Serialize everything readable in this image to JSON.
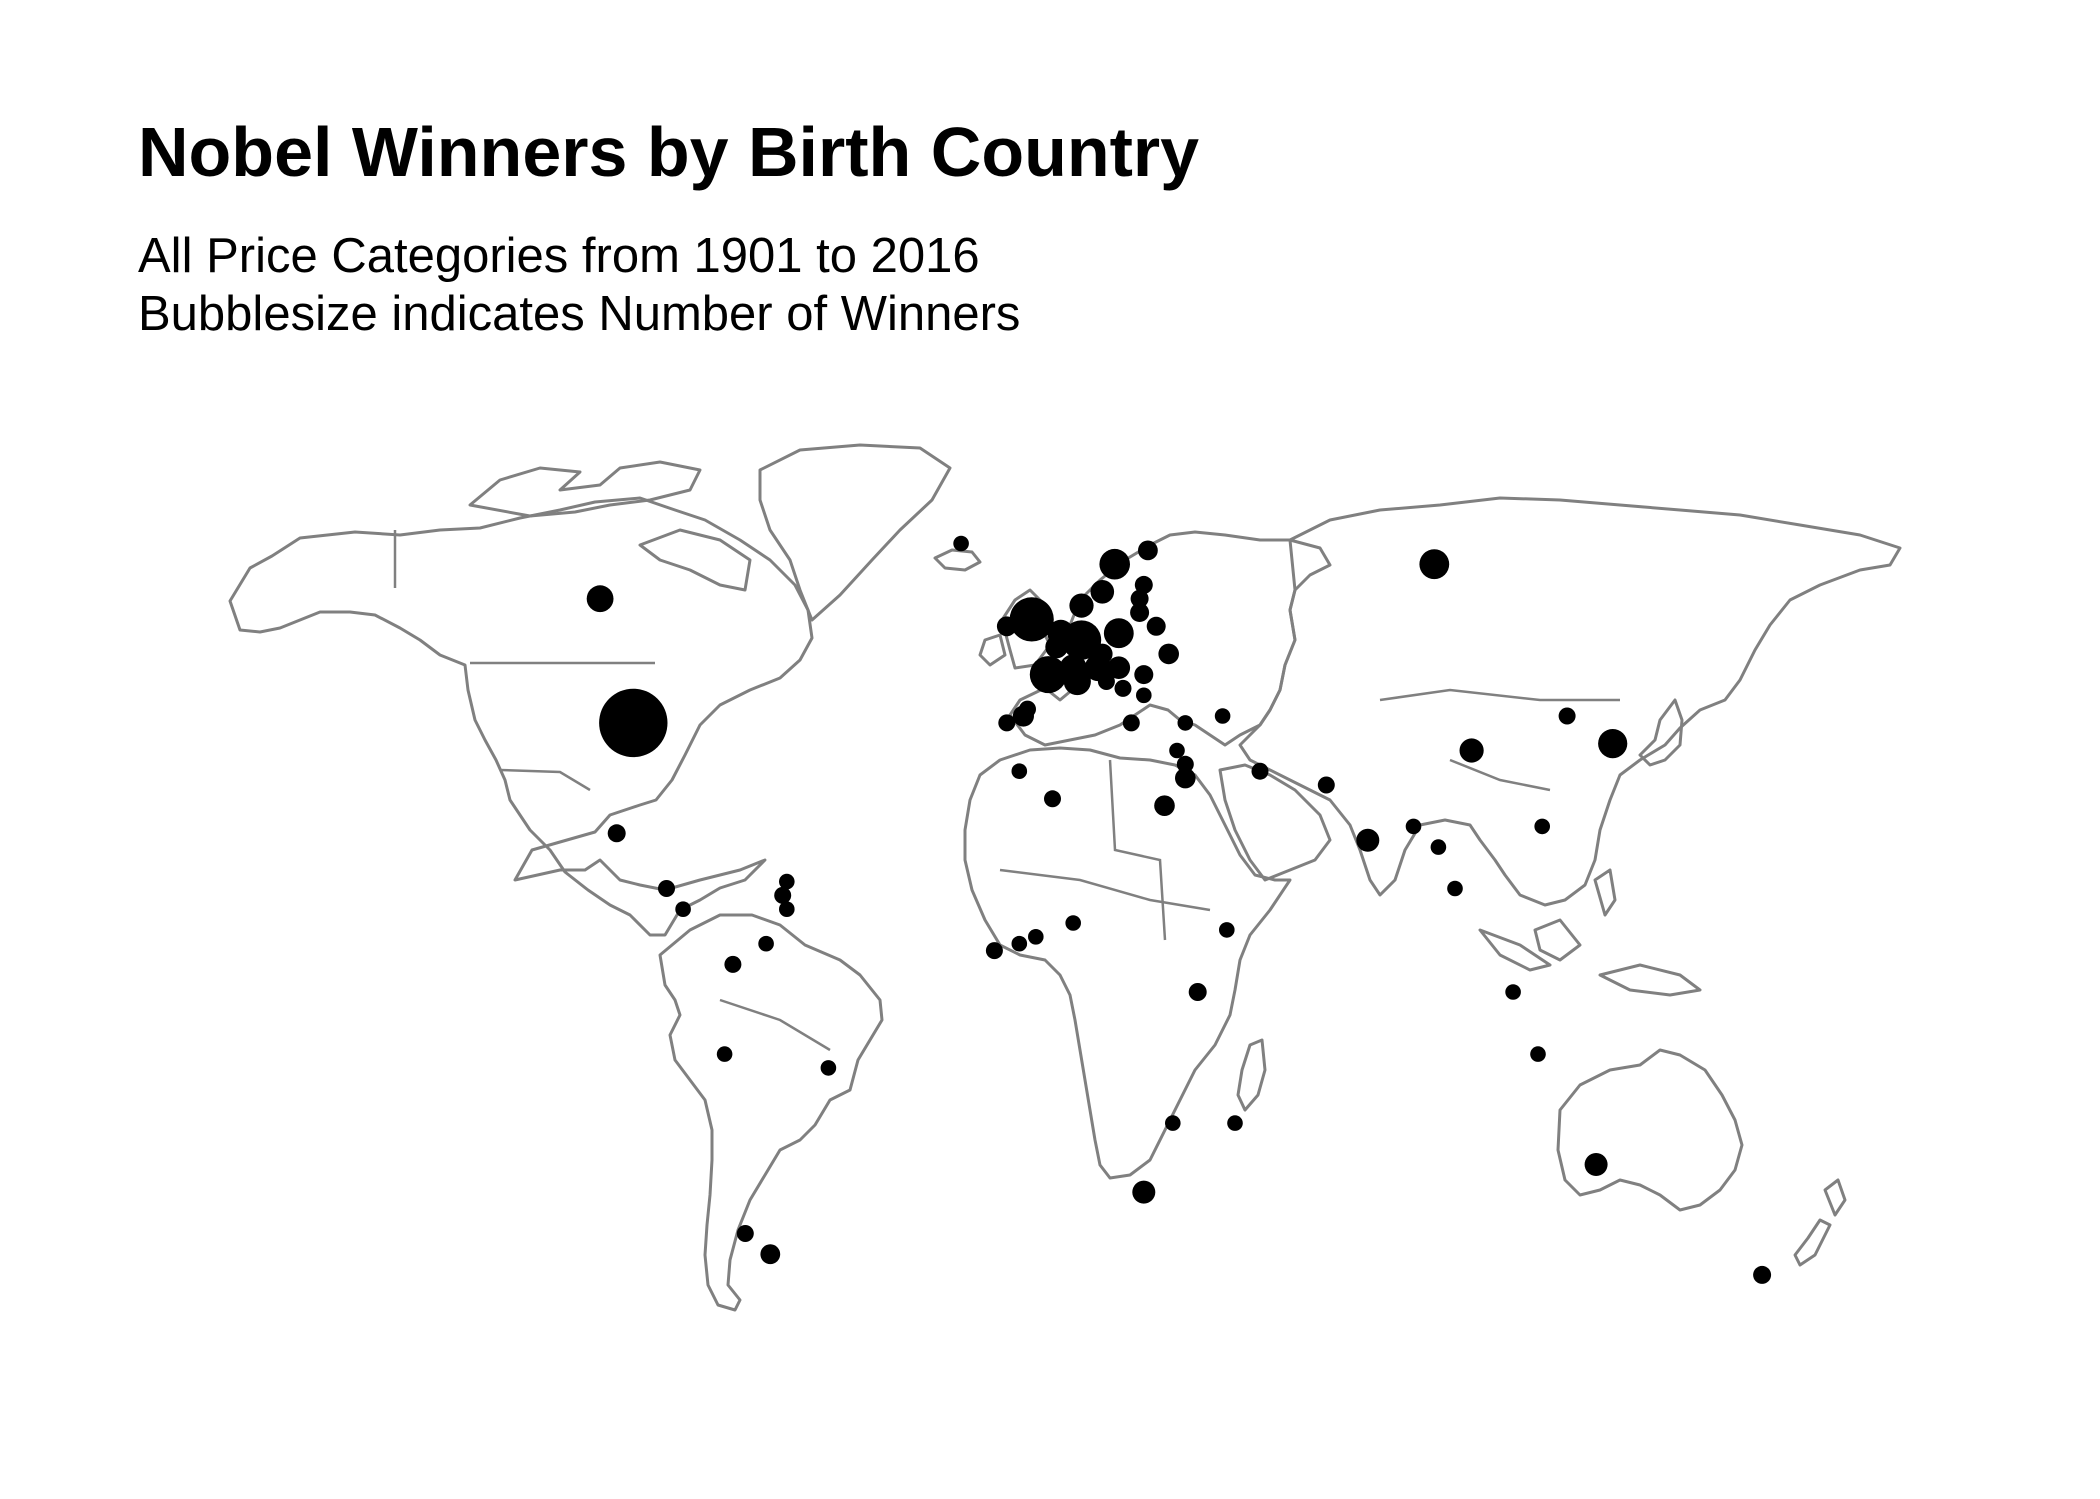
{
  "title": "Nobel Winners by Birth Country",
  "subtitle_1": "All Price Categories from 1901 to 2016",
  "subtitle_2": "Bubblesize indicates Number of Winners",
  "style": {
    "outline_color": "#808080",
    "bubble_color": "#000000",
    "background": "#ffffff"
  },
  "chart_data": {
    "type": "bubble-map",
    "size_meaning": "number of winners",
    "points": [
      {
        "lon": -98,
        "lat": 39,
        "winners": 259
      },
      {
        "lon": -2,
        "lat": 54,
        "winners": 85
      },
      {
        "lon": 10,
        "lat": 51,
        "winners": 61
      },
      {
        "lon": 2,
        "lat": 46,
        "winners": 51
      },
      {
        "lon": 18,
        "lat": 62,
        "winners": 28
      },
      {
        "lon": 19,
        "lat": 52,
        "winners": 26
      },
      {
        "lon": 15,
        "lat": 58,
        "winners": 11
      },
      {
        "lon": 138,
        "lat": 36,
        "winners": 24
      },
      {
        "lon": 5,
        "lat": 52,
        "winners": 18
      },
      {
        "lon": 14,
        "lat": 47,
        "winners": 18
      },
      {
        "lon": 8,
        "lat": 47,
        "winners": 18
      },
      {
        "lon": 95,
        "lat": 62,
        "winners": 26
      },
      {
        "lon": 10,
        "lat": 56,
        "winners": 12
      },
      {
        "lon": -106,
        "lat": 57,
        "winners": 18
      },
      {
        "lon": 9,
        "lat": 45,
        "winners": 19
      },
      {
        "lon": 4,
        "lat": 50,
        "winners": 9
      },
      {
        "lon": 26,
        "lat": 64,
        "winners": 5
      },
      {
        "lon": 15,
        "lat": 49,
        "winners": 6
      },
      {
        "lon": 19,
        "lat": 47,
        "winners": 9
      },
      {
        "lon": 31,
        "lat": 49,
        "winners": 6
      },
      {
        "lon": 28,
        "lat": 53,
        "winners": 4
      },
      {
        "lon": 24,
        "lat": 55,
        "winners": 4
      },
      {
        "lon": 24,
        "lat": 57,
        "winners": 3
      },
      {
        "lon": 25,
        "lat": 59,
        "winners": 3
      },
      {
        "lon": 25,
        "lat": 46,
        "winners": 4
      },
      {
        "lon": 25,
        "lat": 43,
        "winners": 1
      },
      {
        "lon": 16,
        "lat": 45,
        "winners": 2
      },
      {
        "lon": 20,
        "lat": 44,
        "winners": 2
      },
      {
        "lon": 15,
        "lat": 46,
        "winners": 1
      },
      {
        "lon": 22,
        "lat": 39,
        "winners": 2
      },
      {
        "lon": 35,
        "lat": 39,
        "winners": 1
      },
      {
        "lon": 44,
        "lat": 40,
        "winners": 1
      },
      {
        "lon": 35,
        "lat": 31,
        "winners": 6
      },
      {
        "lon": 35,
        "lat": 33,
        "winners": 2
      },
      {
        "lon": 33,
        "lat": 35,
        "winners": 1
      },
      {
        "lon": -4,
        "lat": 40,
        "winners": 7
      },
      {
        "lon": -8,
        "lat": 39,
        "winners": 2
      },
      {
        "lon": -3,
        "lat": 41,
        "winners": 2
      },
      {
        "lon": -19,
        "lat": 65,
        "winners": 1
      },
      {
        "lon": -8,
        "lat": 53,
        "winners": 5
      },
      {
        "lon": -5,
        "lat": 32,
        "winners": 1
      },
      {
        "lon": 3,
        "lat": 28,
        "winners": 2
      },
      {
        "lon": 30,
        "lat": 27,
        "winners": 6
      },
      {
        "lon": 53,
        "lat": 32,
        "winners": 2
      },
      {
        "lon": 69,
        "lat": 30,
        "winners": 2
      },
      {
        "lon": 79,
        "lat": 22,
        "winners": 10
      },
      {
        "lon": 90,
        "lat": 24,
        "winners": 1
      },
      {
        "lon": 96,
        "lat": 21,
        "winners": 1
      },
      {
        "lon": 104,
        "lat": 35,
        "winners": 12
      },
      {
        "lon": 100,
        "lat": 15,
        "winners": 1
      },
      {
        "lon": 121,
        "lat": 24,
        "winners": 1
      },
      {
        "lon": 127,
        "lat": 40,
        "winners": 2
      },
      {
        "lon": 114,
        "lat": 0,
        "winners": 1
      },
      {
        "lon": 120,
        "lat": -9,
        "winners": 1
      },
      {
        "lon": 134,
        "lat": -25,
        "winners": 10
      },
      {
        "lon": 174,
        "lat": -41,
        "winners": 3
      },
      {
        "lon": 45,
        "lat": 9,
        "winners": 1
      },
      {
        "lon": 38,
        "lat": 0,
        "winners": 3
      },
      {
        "lon": 25,
        "lat": -29,
        "winners": 10
      },
      {
        "lon": 32,
        "lat": -19,
        "winners": 1
      },
      {
        "lon": 47,
        "lat": -19,
        "winners": 1
      },
      {
        "lon": -1,
        "lat": 8,
        "winners": 1
      },
      {
        "lon": -5,
        "lat": 7,
        "winners": 1
      },
      {
        "lon": 8,
        "lat": 10,
        "winners": 1
      },
      {
        "lon": -11,
        "lat": 6,
        "winners": 2
      },
      {
        "lon": -102,
        "lat": 23,
        "winners": 3
      },
      {
        "lon": -90,
        "lat": 15,
        "winners": 2
      },
      {
        "lon": -86,
        "lat": 12,
        "winners": 1
      },
      {
        "lon": -62,
        "lat": 14,
        "winners": 2
      },
      {
        "lon": -61,
        "lat": 16,
        "winners": 1
      },
      {
        "lon": -61,
        "lat": 12,
        "winners": 1
      },
      {
        "lon": -74,
        "lat": 4,
        "winners": 2
      },
      {
        "lon": -66,
        "lat": 7,
        "winners": 1
      },
      {
        "lon": -76,
        "lat": -9,
        "winners": 1
      },
      {
        "lon": -51,
        "lat": -11,
        "winners": 1
      },
      {
        "lon": -71,
        "lat": -35,
        "winners": 2
      },
      {
        "lon": -65,
        "lat": -38,
        "winners": 5
      }
    ]
  }
}
